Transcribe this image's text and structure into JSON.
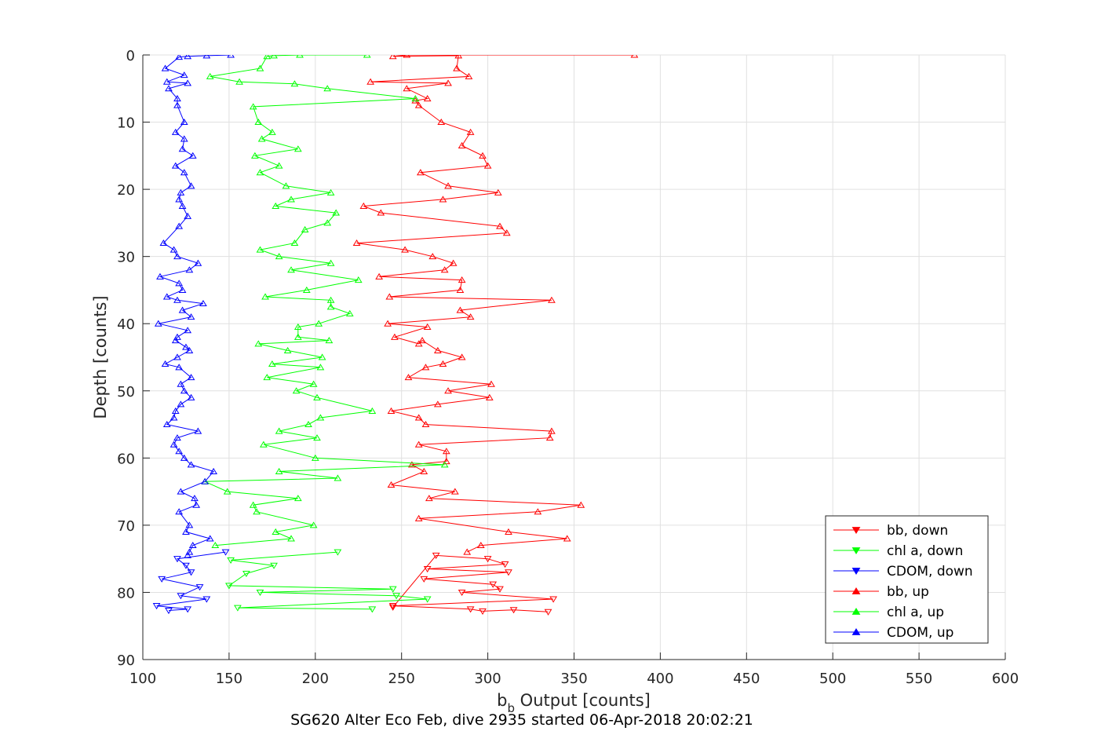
{
  "chart_data": {
    "type": "line",
    "title": "SG620 Alter Eco Feb, dive 2935 started 06-Apr-2018 20:02:21",
    "xlabel_main": "b",
    "xlabel_sub": "b",
    "xlabel_rest": " Output [counts]",
    "ylabel": "Depth [counts]",
    "xlim": [
      100,
      600
    ],
    "ylim": [
      0,
      90
    ],
    "y_reversed": true,
    "xticks": [
      "100",
      "150",
      "200",
      "250",
      "300",
      "350",
      "400",
      "450",
      "500",
      "550",
      "600"
    ],
    "yticks": [
      "0",
      "10",
      "20",
      "30",
      "40",
      "50",
      "60",
      "70",
      "80",
      "90"
    ],
    "grid": true,
    "legend_position": "bottom-right",
    "colors": {
      "bb": "#ff0000",
      "chl": "#00ff00",
      "cdom": "#0000ff",
      "axis": "#262626",
      "grid": "#e0e0e0"
    },
    "series": [
      {
        "name": "bb, down",
        "color": "#ff0000",
        "marker": "triangle-down",
        "x": [
          245,
          270,
          300,
          310,
          265,
          312,
          263,
          303,
          307,
          285,
          338,
          245,
          290,
          297,
          315,
          335
        ],
        "y": [
          82.2,
          74.5,
          75.0,
          75.8,
          76.5,
          77.0,
          78.0,
          78.8,
          79.5,
          80.0,
          81.0,
          82.0,
          82.5,
          82.8,
          82.6,
          82.9
        ]
      },
      {
        "name": "chl a, down",
        "color": "#00ff00",
        "marker": "triangle-down",
        "x": [
          213,
          151,
          176,
          160,
          150,
          245,
          168,
          247,
          265,
          155,
          233
        ],
        "y": [
          74.0,
          75.2,
          76.0,
          77.2,
          79.0,
          79.5,
          80.0,
          80.5,
          81.0,
          82.3,
          82.5
        ]
      },
      {
        "name": "CDOM, down",
        "color": "#0000ff",
        "marker": "triangle-down",
        "x": [
          148,
          120,
          125,
          128,
          111,
          133,
          122,
          137,
          108,
          126,
          115
        ],
        "y": [
          74.0,
          75.0,
          76.0,
          77.0,
          78.0,
          79.2,
          80.5,
          81.0,
          82.0,
          82.5,
          82.7
        ]
      },
      {
        "name": "bb, up",
        "color": "#ff0000",
        "marker": "triangle-up",
        "x": [
          385,
          253,
          245,
          283,
          282,
          289,
          232,
          277,
          253,
          265,
          258,
          260,
          273,
          290,
          285,
          297,
          300,
          261,
          277,
          306,
          274,
          228,
          238,
          307,
          311,
          224,
          252,
          268,
          280,
          275,
          237,
          285,
          284,
          243,
          337,
          284,
          290,
          242,
          265,
          246,
          260,
          262,
          271,
          285,
          274,
          264,
          254,
          302,
          277,
          301,
          271,
          244,
          260,
          264,
          337,
          336,
          260,
          276,
          276,
          256,
          263,
          244,
          281,
          266,
          354,
          329,
          260,
          312,
          346,
          296,
          288
        ],
        "y": [
          0,
          0,
          0.2,
          0.1,
          2.0,
          3.2,
          4.0,
          4.2,
          5.0,
          6.5,
          6.8,
          7.5,
          10.0,
          11.5,
          13.5,
          15.0,
          16.5,
          17.5,
          19.5,
          20.5,
          21.5,
          22.5,
          23.5,
          25.5,
          26.5,
          28.0,
          29.0,
          30.0,
          31.0,
          32.0,
          33.0,
          33.5,
          35.0,
          36.0,
          36.5,
          38.0,
          39.0,
          40.0,
          40.5,
          42.0,
          43.0,
          42.5,
          44.0,
          45.0,
          46.0,
          46.5,
          48.0,
          49.0,
          50.0,
          51.0,
          52.0,
          53.0,
          54.0,
          55.0,
          56.0,
          57.0,
          58.0,
          59.0,
          60.5,
          61.0,
          62.0,
          64.0,
          65.0,
          66.0,
          67.0,
          68.0,
          69.0,
          71.0,
          72.0,
          73.0,
          74.0
        ]
      },
      {
        "name": "chl a, up",
        "color": "#00ff00",
        "marker": "triangle-up",
        "x": [
          230,
          191,
          176,
          172,
          168,
          139,
          156,
          188,
          207,
          258,
          164,
          167,
          175,
          169,
          190,
          165,
          179,
          168,
          183,
          209,
          186,
          177,
          212,
          207,
          194,
          188,
          168,
          179,
          209,
          186,
          225,
          195,
          171,
          209,
          209,
          220,
          202,
          190,
          190,
          208,
          167,
          184,
          204,
          175,
          203,
          172,
          199,
          189,
          201,
          233,
          203,
          196,
          179,
          201,
          170,
          200,
          275,
          179,
          213,
          136,
          149,
          190,
          164,
          166,
          199,
          177,
          186,
          142
        ],
        "y": [
          0,
          0,
          0.1,
          0.2,
          2.0,
          3.2,
          4.0,
          4.3,
          5.0,
          6.5,
          7.7,
          10.0,
          11.5,
          12.5,
          14.0,
          15.0,
          16.5,
          17.5,
          19.5,
          20.5,
          21.5,
          22.5,
          23.5,
          25.0,
          26.0,
          28.0,
          29.0,
          30.0,
          31.0,
          32.0,
          33.5,
          35.0,
          36.0,
          36.5,
          37.5,
          38.5,
          40.0,
          40.5,
          42.0,
          42.5,
          43.0,
          44.0,
          45.0,
          46.0,
          46.5,
          48.0,
          49.0,
          50.0,
          51.0,
          53.0,
          54.0,
          55.0,
          56.0,
          57.0,
          58.0,
          60.0,
          61.0,
          62.0,
          63.0,
          63.5,
          65.0,
          66.0,
          67.0,
          68.0,
          70.0,
          71.0,
          72.0,
          73.0
        ]
      },
      {
        "name": "CDOM, up",
        "color": "#0000ff",
        "marker": "triangle-up",
        "x": [
          151,
          137,
          126,
          121,
          113,
          124,
          114,
          126,
          115,
          120,
          120,
          124,
          119,
          124,
          123,
          129,
          119,
          124,
          128,
          122,
          121,
          123,
          126,
          121,
          112,
          118,
          120,
          132,
          127,
          110,
          121,
          123,
          114,
          120,
          135,
          123,
          128,
          109,
          126,
          120,
          119,
          125,
          127,
          120,
          113,
          121,
          128,
          122,
          124,
          128,
          122,
          119,
          118,
          114,
          132,
          120,
          118,
          121,
          124,
          128,
          141,
          136,
          122,
          130,
          131,
          121,
          127,
          125,
          139,
          129,
          127,
          126
        ],
        "y": [
          0,
          0.1,
          0.2,
          0.3,
          2.0,
          3.0,
          4.0,
          4.2,
          5.0,
          6.5,
          7.5,
          10.0,
          11.5,
          12.5,
          14.0,
          15.0,
          16.5,
          17.5,
          19.5,
          20.5,
          21.5,
          22.5,
          24.0,
          25.5,
          28.0,
          29.0,
          30.0,
          31.0,
          32.0,
          33.0,
          34.0,
          35.0,
          36.0,
          36.5,
          37.0,
          38.0,
          39.0,
          40.0,
          41.0,
          42.0,
          42.5,
          43.5,
          44.0,
          45.0,
          46.0,
          46.5,
          48.0,
          49.0,
          50.0,
          51.0,
          52.0,
          53.0,
          54.0,
          55.0,
          56.0,
          57.0,
          58.0,
          59.0,
          60.0,
          61.0,
          62.0,
          63.5,
          65.0,
          66.0,
          67.0,
          68.0,
          70.0,
          71.0,
          72.0,
          73.0,
          74.0,
          74.5
        ]
      }
    ]
  }
}
